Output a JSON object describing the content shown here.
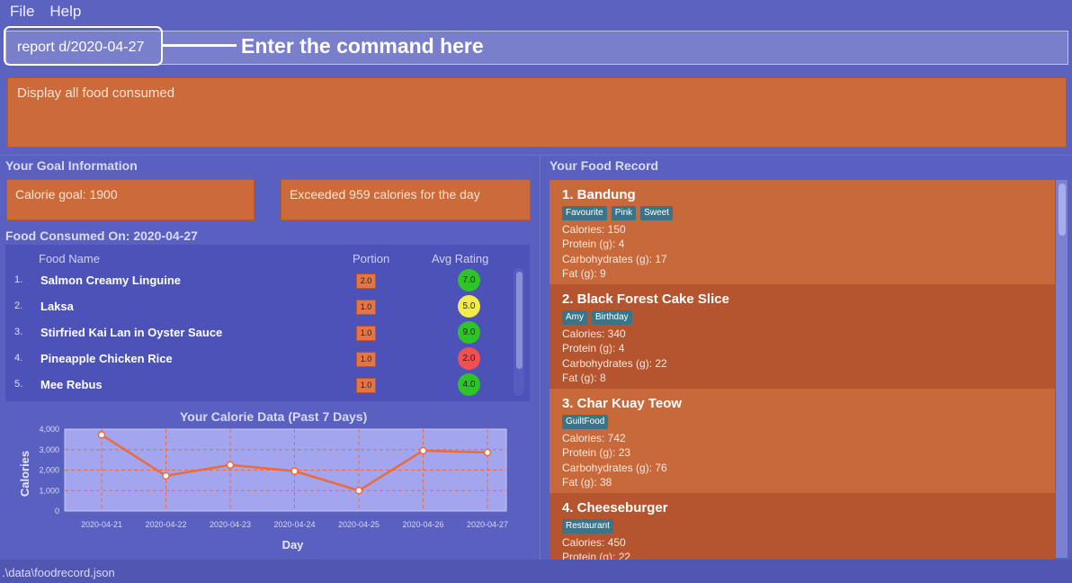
{
  "menu": {
    "file": "File",
    "help": "Help"
  },
  "command": {
    "value": "report d/2020-04-27",
    "annotation": "Enter the command here"
  },
  "result": {
    "text": "Display all food consumed"
  },
  "goal": {
    "title": "Your Goal Information",
    "calorie_goal": "Calorie goal: 1900",
    "status": "Exceeded 959 calories for the day"
  },
  "consumed": {
    "title": "Food Consumed On: 2020-04-27",
    "headers": {
      "name": "Food Name",
      "portion": "Portion",
      "rating": "Avg Rating"
    },
    "rows": [
      {
        "idx": "1.",
        "name": "Salmon Creamy Linguine",
        "portion": "2.0",
        "rating": "7.0",
        "rating_color": "#2ec428"
      },
      {
        "idx": "2.",
        "name": "Laksa",
        "portion": "1.0",
        "rating": "5.0",
        "rating_color": "#f2ec4a"
      },
      {
        "idx": "3.",
        "name": "Stirfried Kai Lan in Oyster Sauce",
        "portion": "1.0",
        "rating": "9.0",
        "rating_color": "#2ec428"
      },
      {
        "idx": "4.",
        "name": "Pineapple Chicken Rice",
        "portion": "1.0",
        "rating": "2.0",
        "rating_color": "#f05050"
      },
      {
        "idx": "5.",
        "name": "Mee Rebus",
        "portion": "1.0",
        "rating": "4.0",
        "rating_color": "#2ec428"
      }
    ]
  },
  "chart_data": {
    "type": "line",
    "title": "Your Calorie Data (Past 7 Days)",
    "xlabel": "Day",
    "ylabel": "Calories",
    "categories": [
      "2020-04-21",
      "2020-04-22",
      "2020-04-23",
      "2020-04-24",
      "2020-04-25",
      "2020-04-26",
      "2020-04-27"
    ],
    "values": [
      3720,
      1720,
      2250,
      1950,
      1000,
      2950,
      2860
    ],
    "yticks": [
      "0",
      "1,000",
      "2,000",
      "3,000",
      "4,000"
    ],
    "ylim": [
      0,
      4000
    ],
    "grid": true,
    "line_color": "#ec6a3c",
    "plot_bg": "#a3a6ee"
  },
  "record": {
    "title": "Your Food Record",
    "cards": [
      {
        "title": "1.  Bandung",
        "tags": [
          "Favourite",
          "Pink",
          "Sweet"
        ],
        "calories": "Calories: 150",
        "protein": "Protein (g): 4",
        "carbs": "Carbohydrates (g): 17",
        "fat": "Fat (g): 9",
        "bg": "#c8693b"
      },
      {
        "title": "2.  Black Forest Cake Slice",
        "tags": [
          "Amy",
          "Birthday"
        ],
        "calories": "Calories: 340",
        "protein": "Protein (g): 4",
        "carbs": "Carbohydrates (g): 22",
        "fat": "Fat (g): 8",
        "bg": "#b5552f"
      },
      {
        "title": "3.  Char Kuay Teow",
        "tags": [
          "GuiltFood"
        ],
        "calories": "Calories: 742",
        "protein": "Protein (g): 23",
        "carbs": "Carbohydrates (g): 76",
        "fat": "Fat (g): 38",
        "bg": "#c8693b"
      },
      {
        "title": "4.  Cheeseburger",
        "tags": [
          "Restaurant"
        ],
        "calories": "Calories: 450",
        "protein": "Protein (g): 22",
        "carbs": "",
        "fat": "",
        "bg": "#b5552f"
      }
    ]
  },
  "status": {
    "path": ".\\data\\foodrecord.json"
  }
}
